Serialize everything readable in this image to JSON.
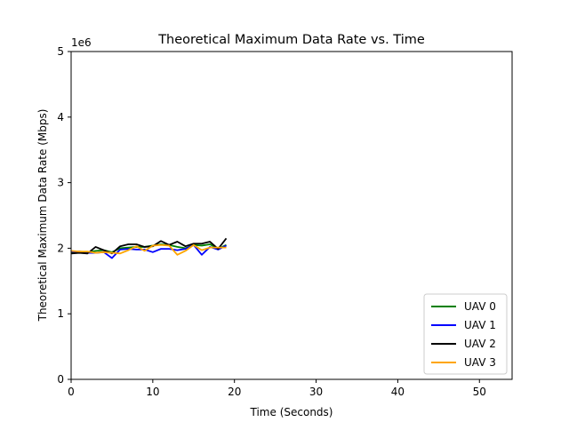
{
  "chart_data": {
    "type": "line",
    "title": "Theoretical Maximum Data Rate vs. Time",
    "xlabel": "Time (Seconds)",
    "ylabel": "Theoretical Maximum Data Rate (Mbps)",
    "y_offset_label": "1e6",
    "xlim": [
      0,
      54
    ],
    "ylim": [
      0,
      5
    ],
    "y_scale_factor": 1000000,
    "xticks": [
      0,
      10,
      20,
      30,
      40,
      50
    ],
    "xtick_labels": [
      "0",
      "10",
      "20",
      "30",
      "40",
      "50"
    ],
    "yticks": [
      0,
      1,
      2,
      3,
      4,
      5
    ],
    "ytick_labels": [
      "0",
      "1",
      "2",
      "3",
      "4",
      "5"
    ],
    "grid": false,
    "legend_position": "lower-right",
    "x": [
      0,
      1,
      2,
      3,
      4,
      5,
      6,
      7,
      8,
      9,
      10,
      11,
      12,
      13,
      14,
      15,
      16,
      17,
      18,
      19
    ],
    "series": [
      {
        "name": "UAV 0",
        "color": "#008000",
        "values": [
          1.93,
          1.95,
          1.94,
          1.96,
          1.97,
          1.94,
          2.0,
          2.01,
          2.02,
          2.02,
          2.04,
          2.06,
          2.05,
          2.02,
          2.0,
          2.05,
          2.04,
          2.06,
          1.99,
          2.05
        ]
      },
      {
        "name": "UAV 1",
        "color": "#0000ff",
        "values": [
          1.95,
          1.95,
          1.93,
          1.93,
          1.94,
          1.85,
          1.98,
          1.99,
          1.98,
          1.98,
          1.94,
          1.99,
          1.99,
          1.97,
          1.99,
          2.05,
          1.9,
          2.02,
          1.98,
          2.04
        ]
      },
      {
        "name": "UAV 2",
        "color": "#000000",
        "values": [
          1.92,
          1.93,
          1.92,
          2.02,
          1.97,
          1.92,
          2.03,
          2.06,
          2.06,
          2.02,
          2.03,
          2.11,
          2.05,
          2.1,
          2.03,
          2.07,
          2.07,
          2.1,
          1.99,
          2.15
        ]
      },
      {
        "name": "UAV 3",
        "color": "#ffa500",
        "values": [
          1.96,
          1.95,
          1.95,
          1.93,
          1.94,
          1.93,
          1.92,
          1.97,
          2.03,
          1.96,
          2.04,
          2.05,
          2.04,
          1.9,
          1.96,
          2.05,
          1.97,
          2.01,
          2.01,
          2.01
        ]
      }
    ]
  }
}
